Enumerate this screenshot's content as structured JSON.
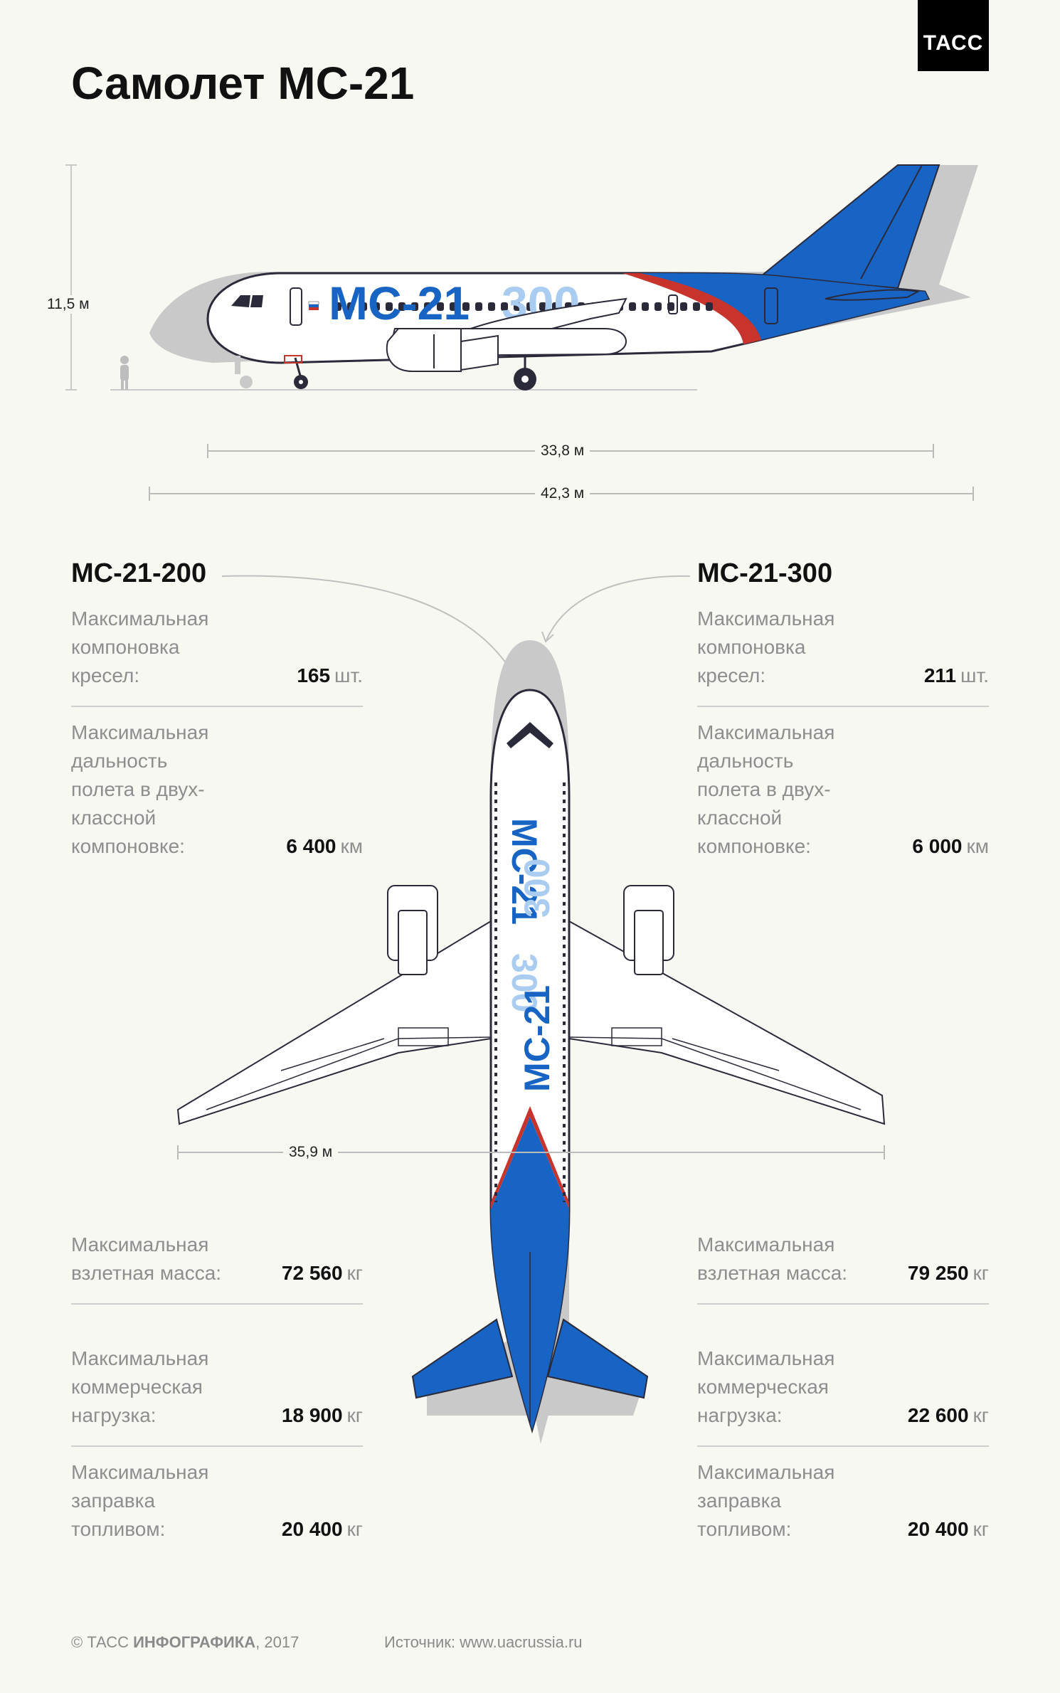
{
  "logo": "ТАСС",
  "title": "Самолет МС-21",
  "side_view": {
    "height_label": "11,5 м",
    "fuselage_length_label": "33,8 м",
    "total_length_label": "42,3 м",
    "livery_text_dark": "МС-21",
    "livery_text_light": "300"
  },
  "top_view": {
    "wingspan_label": "35,9 м"
  },
  "models": [
    {
      "name": "МС-21-200",
      "specs_top": [
        {
          "label": "Максимальная компоновка кресел:",
          "value": "165",
          "unit": "шт."
        },
        {
          "label": "Максимальная дальность полета в двух-классной компоновке:",
          "value": "6 400",
          "unit": "км"
        }
      ],
      "specs_bottom": [
        {
          "label": "Максимальная взлетная масса:",
          "value": "72 560",
          "unit": "кг"
        },
        {
          "label": "Максимальная коммерческая нагрузка:",
          "value": "18 900",
          "unit": "кг"
        },
        {
          "label": "Максимальная заправка топливом:",
          "value": "20 400",
          "unit": "кг"
        }
      ]
    },
    {
      "name": "МС-21-300",
      "specs_top": [
        {
          "label": "Максимальная компоновка кресел:",
          "value": "211",
          "unit": "шт."
        },
        {
          "label": "Максимальная дальность полета в двух-классной компоновке:",
          "value": "6 000",
          "unit": "км"
        }
      ],
      "specs_bottom": [
        {
          "label": "Максимальная взлетная масса:",
          "value": "79 250",
          "unit": "кг"
        },
        {
          "label": "Максимальная коммерческая нагрузка:",
          "value": "22 600",
          "unit": "кг"
        },
        {
          "label": "Максимальная заправка топливом:",
          "value": "20 400",
          "unit": "кг"
        }
      ]
    }
  ],
  "footer": {
    "copyright_prefix": "© ТАСС ",
    "copyright_bold": "ИНФОГРАФИКА",
    "copyright_year": ", 2017",
    "source": "Источник: www.uacrussia.ru"
  },
  "colors": {
    "blue": "#1764c4",
    "light_blue": "#a9ccf0",
    "red": "#c8342c",
    "shadow": "#c9c9c9",
    "outline": "#2a2a3a"
  }
}
